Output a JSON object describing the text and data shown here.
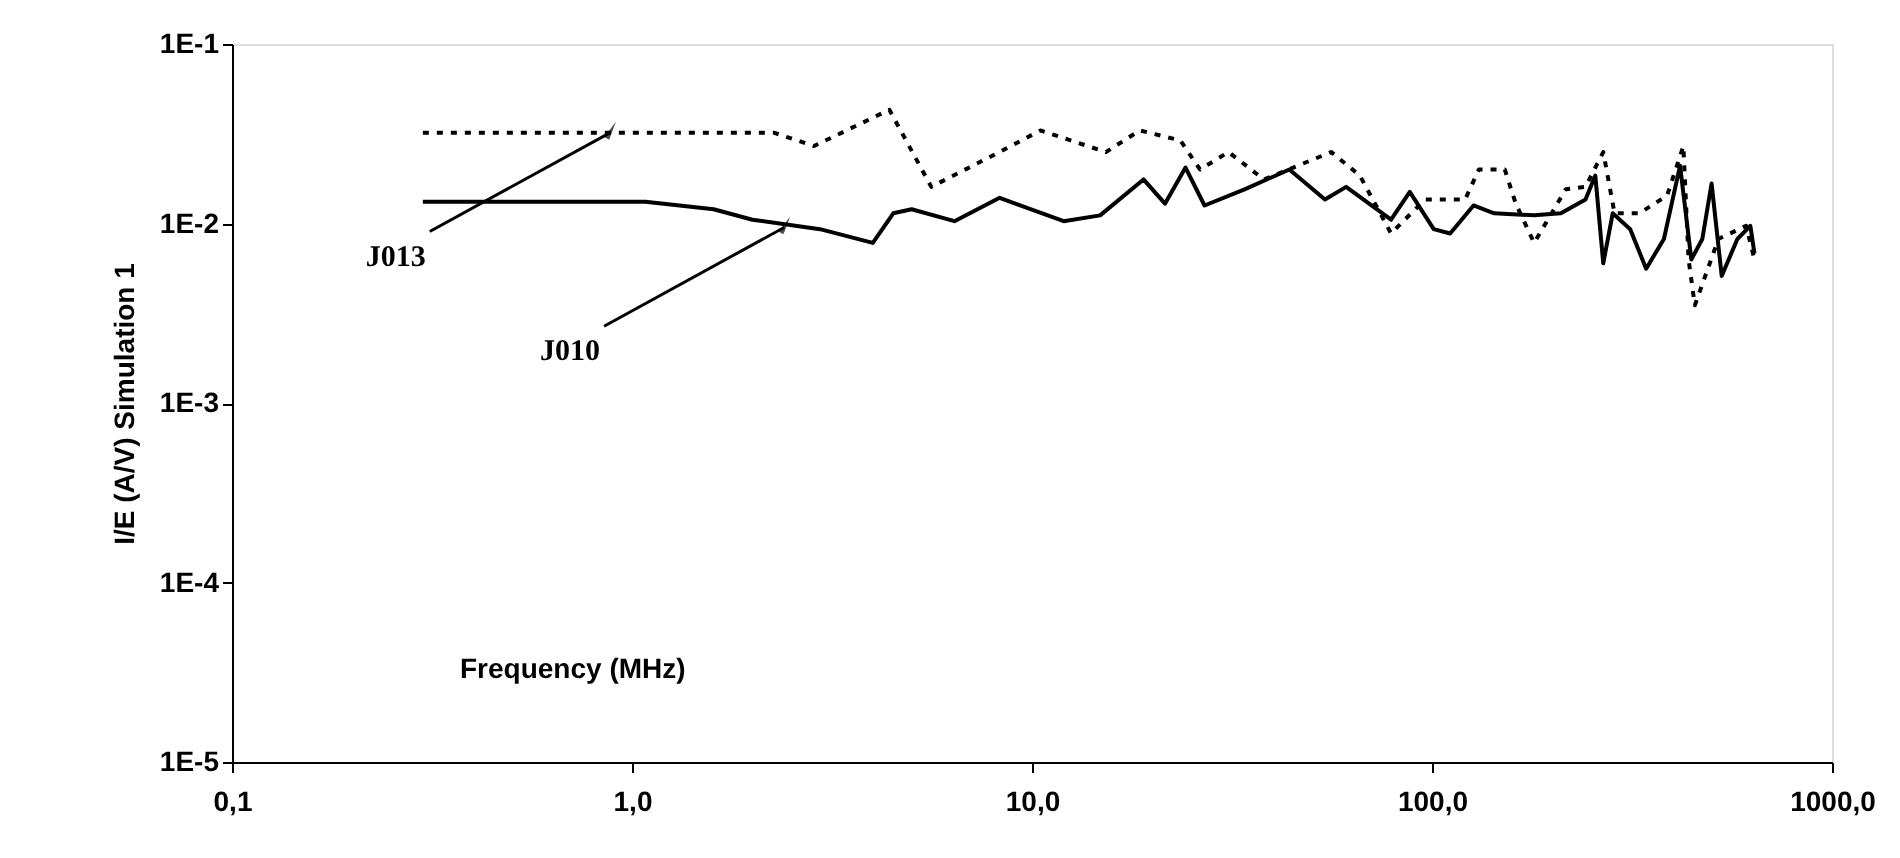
{
  "chart_data": {
    "type": "line",
    "xlabel": "Frequency (MHz)",
    "ylabel": "I/E (A/V) Simulation 1",
    "log": "xy",
    "grid": false,
    "xlim": [
      0.1,
      1000
    ],
    "xticks": [
      {
        "value": 0.1,
        "label": "0,1"
      },
      {
        "value": 1,
        "label": "1,0"
      },
      {
        "value": 10,
        "label": "10,0"
      },
      {
        "value": 100,
        "label": "100,0"
      },
      {
        "value": 1000,
        "label": "1000,0"
      }
    ],
    "ylim": [
      1e-05,
      0.1
    ],
    "yticks": [
      {
        "value": 0.1,
        "label": "1E-1"
      },
      {
        "value": 0.01,
        "label": "1E-2"
      },
      {
        "value": 0.001,
        "label": "1E-3"
      },
      {
        "value": 0.0001,
        "label": "1E-4"
      },
      {
        "value": 1e-05,
        "label": "1E-5"
      }
    ],
    "series": [
      {
        "color": "#000000",
        "line_style": "dotted",
        "x": [
          0.3,
          2.27,
          2.85,
          4.4,
          5.6,
          8.0,
          10.5,
          15.3,
          18.6,
          23.5,
          26.3,
          31,
          38,
          56,
          66,
          79,
          96,
          121,
          131,
          152,
          162,
          180,
          216,
          242,
          268,
          286,
          330,
          387,
          425,
          438,
          454,
          520,
          610,
          640
        ],
        "values": [
          0.032,
          0.032,
          0.027,
          0.043,
          0.016,
          0.024,
          0.033,
          0.025,
          0.033,
          0.029,
          0.02,
          0.025,
          0.0176,
          0.025,
          0.0185,
          0.0088,
          0.0136,
          0.0136,
          0.02,
          0.02,
          0.0129,
          0.0078,
          0.0155,
          0.016,
          0.025,
          0.0114,
          0.0114,
          0.0143,
          0.027,
          0.0063,
          0.0035,
          0.0082,
          0.0097,
          0.0063
        ]
      },
      {
        "color": "#000000",
        "line_style": "solid",
        "x": [
          0.3,
          1.08,
          1.6,
          2.0,
          2.95,
          4.0,
          4.5,
          5.0,
          6.4,
          8.3,
          12,
          14.8,
          19,
          21.5,
          24.2,
          27,
          34,
          44,
          54,
          61,
          79,
          88,
          101,
          111,
          127,
          143,
          180,
          210,
          242,
          256,
          268,
          283,
          313,
          343,
          380,
          417,
          445,
          474,
          500,
          530,
          580,
          625,
          640
        ],
        "values": [
          0.0132,
          0.0132,
          0.012,
          0.0105,
          0.0093,
          0.0078,
          0.0114,
          0.012,
          0.0103,
          0.0139,
          0.0103,
          0.0111,
          0.0176,
          0.0129,
          0.0205,
          0.0126,
          0.0155,
          0.02,
          0.0136,
          0.016,
          0.0105,
          0.015,
          0.0093,
          0.0088,
          0.0126,
          0.0114,
          0.0111,
          0.0114,
          0.0136,
          0.0185,
          0.006,
          0.0114,
          0.0093,
          0.0056,
          0.0082,
          0.021,
          0.0063,
          0.0082,
          0.0167,
          0.0051,
          0.0082,
          0.0097,
          0.0068
        ]
      }
    ],
    "annotations": [
      {
        "text": "J013",
        "x": 0.88,
        "y": 0.032
      },
      {
        "text": "J010",
        "x": 2.4,
        "y": 0.0095
      }
    ]
  }
}
